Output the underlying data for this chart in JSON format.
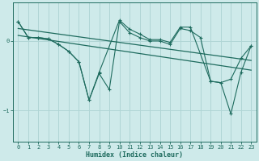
{
  "xlabel": "Humidex (Indice chaleur)",
  "background_color": "#ceeaea",
  "line_color": "#1e6b5e",
  "grid_color": "#b0d5d5",
  "xlim": [
    -0.5,
    23.5
  ],
  "ylim": [
    -1.45,
    0.55
  ],
  "yticks": [
    0,
    -1
  ],
  "xticks": [
    0,
    1,
    2,
    3,
    4,
    5,
    6,
    7,
    8,
    9,
    10,
    11,
    12,
    13,
    14,
    15,
    16,
    17,
    18,
    19,
    20,
    21,
    22,
    23
  ],
  "series1_x": [
    0,
    1,
    2,
    3,
    4,
    5,
    6,
    7,
    8,
    10,
    11,
    12,
    13,
    14,
    15,
    16,
    17,
    19,
    20,
    21,
    22,
    23
  ],
  "series1_y": [
    0.28,
    0.05,
    0.05,
    0.03,
    -0.05,
    -0.15,
    -0.3,
    -0.85,
    -0.45,
    0.3,
    0.17,
    0.1,
    0.02,
    0.02,
    -0.02,
    0.2,
    0.2,
    -0.58,
    -0.6,
    -0.55,
    -0.25,
    -0.07
  ],
  "series2_x": [
    0,
    1,
    2,
    3,
    4,
    5,
    6,
    7,
    8,
    9,
    10,
    11,
    12,
    13,
    14,
    15,
    16,
    17,
    18,
    19,
    20,
    21,
    22,
    23
  ],
  "series2_y": [
    0.28,
    0.05,
    0.05,
    0.03,
    -0.05,
    -0.15,
    -0.3,
    -0.85,
    -0.47,
    -0.7,
    0.28,
    0.12,
    0.05,
    0.0,
    0.0,
    -0.05,
    0.18,
    0.15,
    0.05,
    -0.58,
    -0.6,
    -1.05,
    -0.45,
    -0.07
  ],
  "trend1_x": [
    0,
    23
  ],
  "trend1_y": [
    0.18,
    -0.28
  ],
  "trend2_x": [
    0,
    23
  ],
  "trend2_y": [
    0.08,
    -0.42
  ],
  "marker_size": 3.0
}
